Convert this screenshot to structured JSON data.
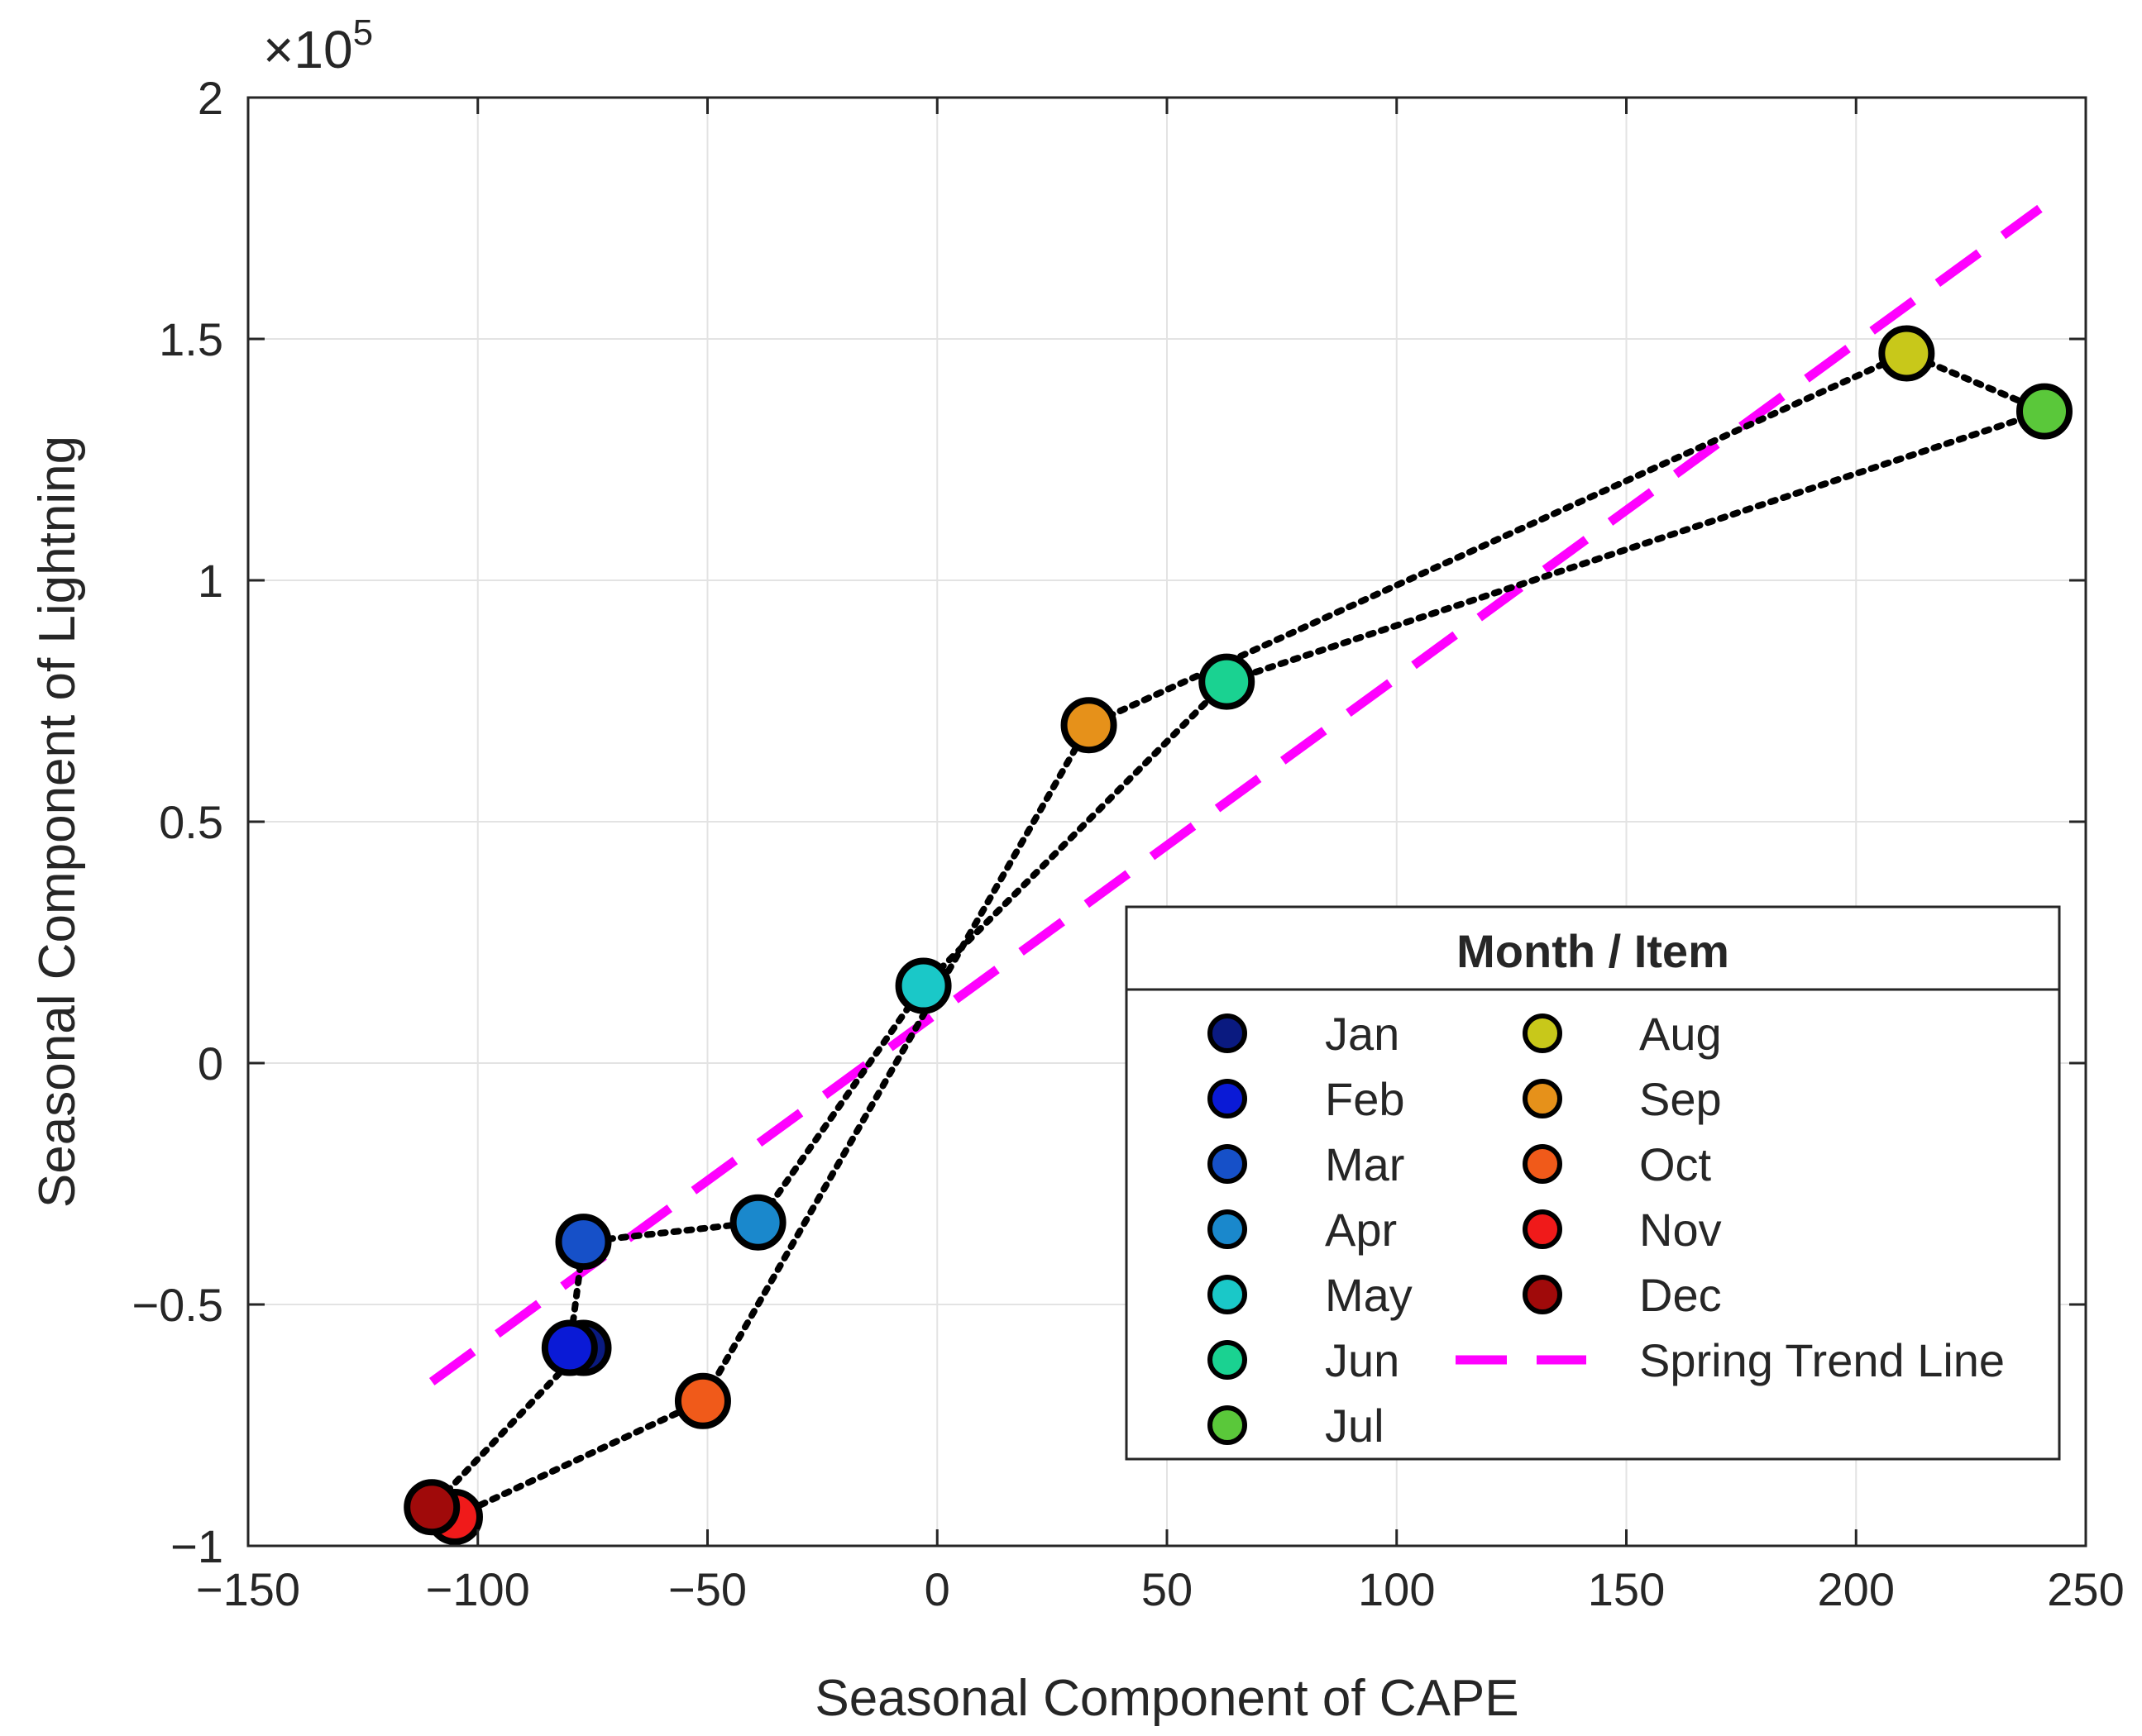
{
  "chart_data": {
    "type": "scatter",
    "title": "",
    "xlabel": "Seasonal Component of CAPE",
    "ylabel": "Seasonal Component of Lightning",
    "y_multiplier_base": "×10",
    "y_multiplier_exponent": "5",
    "xlim": [
      -150,
      250
    ],
    "ylim": [
      -1,
      2
    ],
    "x_ticks": [
      -150,
      -100,
      -50,
      0,
      50,
      100,
      150,
      200,
      250
    ],
    "x_tick_labels": [
      "−150",
      "−100",
      "−50",
      "0",
      "50",
      "100",
      "150",
      "200",
      "250"
    ],
    "y_ticks": [
      -1,
      -0.5,
      0,
      0.5,
      1,
      1.5,
      2
    ],
    "y_tick_labels": [
      "−1",
      "−0.5",
      "0",
      "0.5",
      "1",
      "1.5",
      "2"
    ],
    "grid": true,
    "legend": {
      "title": "Month / Item",
      "placement": "bottom-right",
      "columns": 2
    },
    "series": [
      {
        "name": "Jan",
        "x": -77,
        "y": -0.59,
        "color": "#0a1a80"
      },
      {
        "name": "Feb",
        "x": -80,
        "y": -0.59,
        "color": "#0a1ad6"
      },
      {
        "name": "Mar",
        "x": -77,
        "y": -0.37,
        "color": "#1650c8"
      },
      {
        "name": "Apr",
        "x": -39,
        "y": -0.33,
        "color": "#1a88cc"
      },
      {
        "name": "May",
        "x": -3,
        "y": 0.16,
        "color": "#1ac8c8"
      },
      {
        "name": "Jun",
        "x": 63,
        "y": 0.79,
        "color": "#1ad291"
      },
      {
        "name": "Jul",
        "x": 241,
        "y": 1.35,
        "color": "#5ac83a"
      },
      {
        "name": "Aug",
        "x": 211,
        "y": 1.47,
        "color": "#c8c81a"
      },
      {
        "name": "Sep",
        "x": 33,
        "y": 0.7,
        "color": "#e6911a"
      },
      {
        "name": "Oct",
        "x": -51,
        "y": -0.7,
        "color": "#f05a1a"
      },
      {
        "name": "Nov",
        "x": -105,
        "y": -0.94,
        "color": "#f01a1a"
      },
      {
        "name": "Dec",
        "x": -110,
        "y": -0.92,
        "color": "#a00a0a"
      }
    ],
    "trend_line": {
      "name": "Spring Trend Line",
      "color": "#ff00ff",
      "x": [
        -110,
        240
      ],
      "y": [
        -0.66,
        1.77
      ]
    }
  }
}
